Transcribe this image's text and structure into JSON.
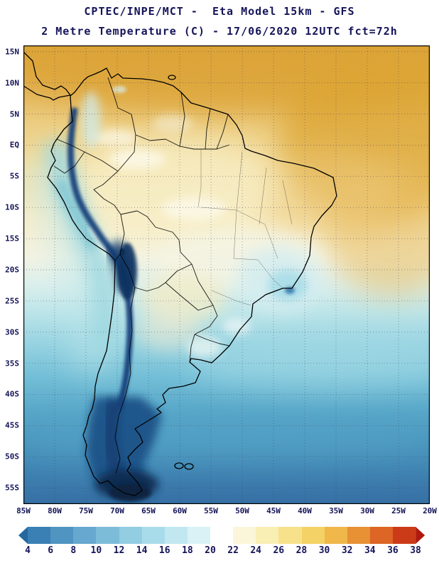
{
  "header": {
    "line1": "CPTEC/INPE/MCT -  Eta Model 15km - GFS",
    "line2": "2 Metre Temperature (C) - 17/06/2020 12UTC fct=72h"
  },
  "map": {
    "lat_labels": [
      "15N",
      "10N",
      "5N",
      "EQ",
      "5S",
      "10S",
      "15S",
      "20S",
      "25S",
      "30S",
      "35S",
      "40S",
      "45S",
      "50S",
      "55S"
    ],
    "lon_labels": [
      "85W",
      "80W",
      "75W",
      "70W",
      "65W",
      "60W",
      "55W",
      "50W",
      "45W",
      "40W",
      "35W",
      "30W",
      "25W",
      "20W"
    ]
  },
  "colorbar": {
    "unit": "C",
    "ticks": [
      "4",
      "6",
      "8",
      "10",
      "12",
      "14",
      "16",
      "18",
      "20",
      "22",
      "24",
      "26",
      "28",
      "30",
      "32",
      "34",
      "36",
      "38"
    ],
    "colors": [
      "#25689e",
      "#3a80b4",
      "#5094c2",
      "#66a8cf",
      "#7cbcd9",
      "#92cde2",
      "#a9dcea",
      "#c1e8f0",
      "#daf2f6",
      "#ffffff",
      "#fbf6d9",
      "#f9eeb4",
      "#f7e28b",
      "#f5d265",
      "#f0b74a",
      "#e89034",
      "#dd6525",
      "#cc3b18",
      "#b01a0d"
    ]
  },
  "theme": {
    "text_color": "#15155a",
    "frame_color": "#000000",
    "andes_cold": "#10386e",
    "warm_tropics": "#dca43a"
  }
}
